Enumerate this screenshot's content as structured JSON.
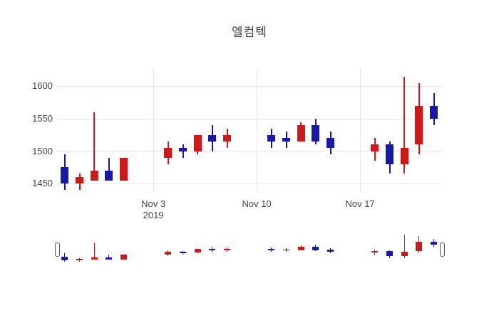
{
  "title": "엘컴텍",
  "colors": {
    "increasing": "#cc1a1a",
    "decreasing": "#1818aa",
    "grid": "#e6e6e6",
    "text": "#444444",
    "background": "#ffffff",
    "slider_handle_border": "#555555"
  },
  "chart_data": {
    "type": "candlestick",
    "title": "엘컴텍",
    "x_start_date": "2019-10-28",
    "grid": true,
    "legend": false,
    "ylim_main": [
      1437,
      1629
    ],
    "ylim_slider": [
      1424,
      1620
    ],
    "yticks": [
      1450,
      1500,
      1550,
      1600
    ],
    "xticks": [
      {
        "label": "Nov 3",
        "sublabel": "2019",
        "date": "2019-11-03"
      },
      {
        "label": "Nov 10",
        "sublabel": "",
        "date": "2019-11-10"
      },
      {
        "label": "Nov 17",
        "sublabel": "",
        "date": "2019-11-17"
      }
    ],
    "candles": [
      {
        "date": "2019-10-28",
        "open": 1475,
        "high": 1495,
        "low": 1440,
        "close": 1450
      },
      {
        "date": "2019-10-29",
        "open": 1450,
        "high": 1465,
        "low": 1440,
        "close": 1460
      },
      {
        "date": "2019-10-30",
        "open": 1455,
        "high": 1560,
        "low": 1455,
        "close": 1470
      },
      {
        "date": "2019-10-31",
        "open": 1470,
        "high": 1490,
        "low": 1455,
        "close": 1455
      },
      {
        "date": "2019-11-01",
        "open": 1455,
        "high": 1490,
        "low": 1455,
        "close": 1490
      },
      {
        "date": "2019-11-04",
        "open": 1490,
        "high": 1515,
        "low": 1480,
        "close": 1505
      },
      {
        "date": "2019-11-05",
        "open": 1505,
        "high": 1510,
        "low": 1490,
        "close": 1500
      },
      {
        "date": "2019-11-06",
        "open": 1500,
        "high": 1525,
        "low": 1495,
        "close": 1525
      },
      {
        "date": "2019-11-07",
        "open": 1525,
        "high": 1540,
        "low": 1500,
        "close": 1515
      },
      {
        "date": "2019-11-08",
        "open": 1515,
        "high": 1535,
        "low": 1505,
        "close": 1525
      },
      {
        "date": "2019-11-11",
        "open": 1525,
        "high": 1535,
        "low": 1505,
        "close": 1515
      },
      {
        "date": "2019-11-12",
        "open": 1520,
        "high": 1530,
        "low": 1505,
        "close": 1515
      },
      {
        "date": "2019-11-13",
        "open": 1515,
        "high": 1545,
        "low": 1515,
        "close": 1540
      },
      {
        "date": "2019-11-14",
        "open": 1540,
        "high": 1550,
        "low": 1510,
        "close": 1515
      },
      {
        "date": "2019-11-15",
        "open": 1520,
        "high": 1530,
        "low": 1495,
        "close": 1505
      },
      {
        "date": "2019-11-18",
        "open": 1500,
        "high": 1520,
        "low": 1485,
        "close": 1510
      },
      {
        "date": "2019-11-19",
        "open": 1510,
        "high": 1515,
        "low": 1465,
        "close": 1480
      },
      {
        "date": "2019-11-20",
        "open": 1480,
        "high": 1615,
        "low": 1465,
        "close": 1505
      },
      {
        "date": "2019-11-21",
        "open": 1510,
        "high": 1605,
        "low": 1495,
        "close": 1570
      },
      {
        "date": "2019-11-22",
        "open": 1570,
        "high": 1590,
        "low": 1540,
        "close": 1550
      }
    ]
  },
  "rangeslider": {
    "visible": true
  }
}
